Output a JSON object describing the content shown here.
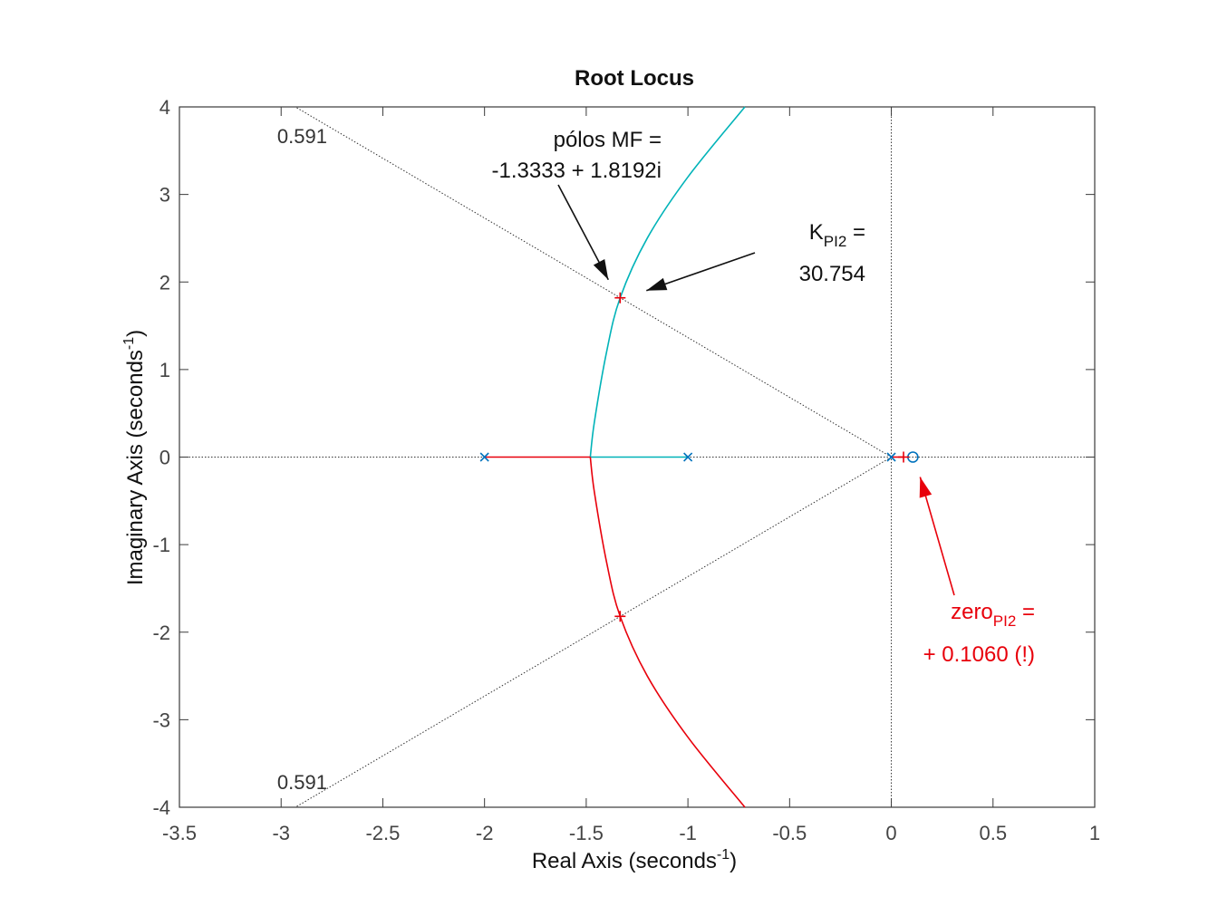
{
  "chart_data": {
    "type": "scatter",
    "title": "Root Locus",
    "xlabel": {
      "text": "Real Axis (seconds",
      "sup": "-1",
      "close": ")"
    },
    "ylabel": {
      "text": "Imaginary Axis (seconds",
      "sup": "-1",
      "close": ")"
    },
    "xlim": [
      -3.5,
      1
    ],
    "ylim": [
      -4,
      4
    ],
    "xticks": [
      -3.5,
      -3,
      -2.5,
      -2,
      -1.5,
      -1,
      -0.5,
      0,
      0.5,
      1
    ],
    "xtick_labels": [
      "-3.5",
      "-3",
      "-2.5",
      "-2",
      "-1.5",
      "-1",
      "-0.5",
      "0",
      "0.5",
      "1"
    ],
    "yticks": [
      -4,
      -3,
      -2,
      -1,
      0,
      1,
      2,
      3,
      4
    ],
    "ytick_labels": [
      "-4",
      "-3",
      "-2",
      "-1",
      "0",
      "1",
      "2",
      "3",
      "4"
    ],
    "grid": false,
    "colors": {
      "branch_cyan": "#00b3b8",
      "branch_red": "#e8000b",
      "marker_blue": "#0072bd",
      "guide": "#333333",
      "annot_red": "#e8000b"
    },
    "open_loop_poles": [
      [
        -2,
        0
      ],
      [
        -1,
        0
      ],
      [
        0,
        0
      ]
    ],
    "open_loop_zeros": [
      [
        0.106,
        0
      ]
    ],
    "closed_loop_poles": [
      [
        -1.3333,
        1.8192
      ],
      [
        -1.3333,
        -1.8192
      ],
      [
        0.06,
        0
      ]
    ],
    "breakaway": [
      -1.48,
      0
    ],
    "branches": [
      {
        "color": "cyan",
        "points": [
          [
            -1,
            0
          ],
          [
            -1.48,
            0
          ],
          [
            -1.46,
            0.4
          ],
          [
            -1.4,
            1.2
          ],
          [
            -1.3333,
            1.8192
          ],
          [
            -1.2,
            2.5
          ],
          [
            -1.0,
            3.2
          ],
          [
            -0.72,
            4.0
          ]
        ]
      },
      {
        "color": "red",
        "points": [
          [
            -2,
            0
          ],
          [
            -1.48,
            0
          ],
          [
            -1.46,
            -0.4
          ],
          [
            -1.4,
            -1.2
          ],
          [
            -1.3333,
            -1.8192
          ],
          [
            -1.2,
            -2.5
          ],
          [
            -1.0,
            -3.2
          ],
          [
            -0.72,
            -4.0
          ]
        ]
      },
      {
        "color": "red",
        "points": [
          [
            0,
            0
          ],
          [
            0.06,
            0
          ]
        ]
      }
    ],
    "damping_lines": [
      {
        "label": "0.591",
        "end": [
          -2.93,
          4.0
        ]
      },
      {
        "label": "0.591",
        "end": [
          -2.93,
          -4.0
        ]
      }
    ],
    "annotations": [
      {
        "id": "poles",
        "lines": [
          "pólos MF =",
          "-1.3333 + 1.8192i"
        ],
        "arrow_to": [
          -1.3333,
          1.8192
        ]
      },
      {
        "id": "gain",
        "base": "K",
        "sub": "PI2",
        "suffix": " =",
        "line2": "30.754",
        "arrow_to": [
          -1.3333,
          1.8192
        ]
      },
      {
        "id": "zero",
        "base": "zero",
        "sub": "PI2",
        "suffix": " =",
        "line2": "+ 0.1060 (!)",
        "arrow_to": [
          0.106,
          0
        ]
      }
    ]
  }
}
